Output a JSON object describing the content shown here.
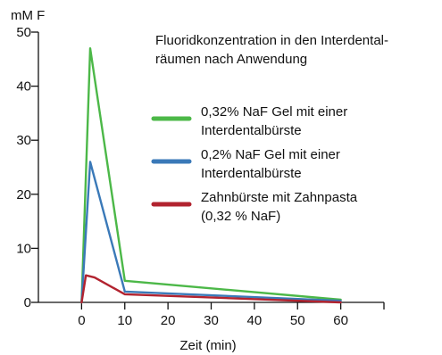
{
  "chart_data": {
    "type": "line",
    "title_lines": [
      "Fluoridkonzentration in den Interdental-",
      "räumen nach Anwendung"
    ],
    "xlabel": "Zeit (min)",
    "ylabel": "mM F",
    "xlim": [
      -10,
      70
    ],
    "ylim": [
      0,
      50
    ],
    "x_ticks": [
      0,
      10,
      20,
      30,
      40,
      50,
      60
    ],
    "y_ticks": [
      0,
      10,
      20,
      30,
      40,
      50
    ],
    "x_tick_labels": [
      "0",
      "10",
      "20",
      "30",
      "40",
      "50",
      "60"
    ],
    "y_tick_labels": [
      "0",
      "10",
      "20",
      "30",
      "40",
      "50"
    ],
    "grid": false,
    "legend_position": "right",
    "series": [
      {
        "name_lines": [
          "0,32% NaF Gel mit einer",
          "Interdentalbürste"
        ],
        "color": "#4cb848",
        "x": [
          0,
          2,
          10,
          60
        ],
        "y": [
          0,
          47,
          4,
          0.5
        ]
      },
      {
        "name_lines": [
          "0,2% NaF Gel mit einer",
          "Interdentalbürste"
        ],
        "color": "#3a79b8",
        "x": [
          0,
          2,
          10,
          60
        ],
        "y": [
          0,
          26,
          2,
          0.3
        ]
      },
      {
        "name_lines": [
          "Zahnbürste mit Zahnpasta",
          "(0,32 % NaF)"
        ],
        "color": "#b2232f",
        "x": [
          0,
          1,
          3,
          10,
          60
        ],
        "y": [
          0,
          5,
          4.6,
          1.5,
          0
        ]
      }
    ]
  }
}
